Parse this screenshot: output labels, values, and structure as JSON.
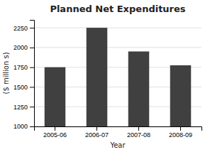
{
  "chart_data": {
    "type": "bar",
    "title": "Planned Net Expenditures",
    "xlabel": "Year",
    "ylabel": "($ million s)",
    "categories": [
      "2005-06",
      "2006-07",
      "2007-08",
      "2008-09"
    ],
    "values": [
      1750,
      2250,
      1950,
      1775
    ],
    "color": "#404040",
    "ylim": [
      1000,
      2350
    ],
    "yticks": [
      1000,
      1250,
      1500,
      1750,
      2000,
      2250
    ],
    "grid": true
  }
}
